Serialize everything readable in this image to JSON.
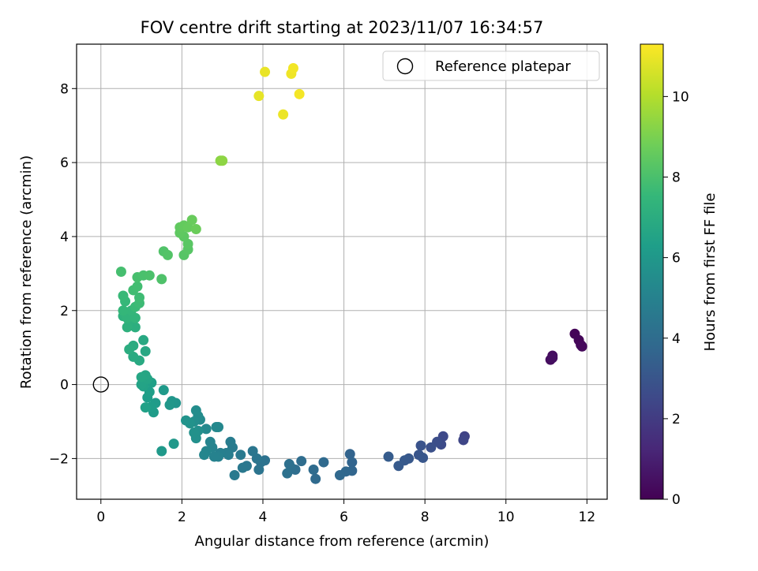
{
  "chart_data": {
    "type": "scatter",
    "title": "FOV centre drift starting at 2023/11/07 16:34:57",
    "xlabel": "Angular distance from reference (arcmin)",
    "ylabel": "Rotation from reference (arcmin)",
    "xlim": [
      -0.6,
      12.5
    ],
    "ylim": [
      -3.1,
      9.2
    ],
    "x_ticks": [
      0,
      2,
      4,
      6,
      8,
      10,
      12
    ],
    "y_ticks": [
      -2,
      0,
      2,
      4,
      6,
      8
    ],
    "x_tick_labels": [
      "0",
      "2",
      "4",
      "6",
      "8",
      "10",
      "12"
    ],
    "y_tick_labels": [
      "−2",
      "0",
      "2",
      "4",
      "6",
      "8"
    ],
    "grid": true,
    "legend": {
      "position": "top-right",
      "entries": [
        {
          "label": "Reference platepar",
          "marker": "open-circle"
        }
      ]
    },
    "reference": {
      "x": 0,
      "y": 0
    },
    "colorbar": {
      "label": "Hours from first FF file",
      "colormap": "viridis",
      "range": [
        0,
        11.3
      ],
      "ticks": [
        0,
        2,
        4,
        6,
        8,
        10
      ],
      "tick_labels": [
        "0",
        "2",
        "4",
        "6",
        "8",
        "10"
      ],
      "stops": [
        "#440154",
        "#482878",
        "#3e4989",
        "#31688e",
        "#26828e",
        "#1f9e89",
        "#35b779",
        "#6ece58",
        "#b5de2b",
        "#fde725"
      ]
    },
    "points": [
      {
        "x": 11.7,
        "y": 1.37,
        "h": 0.1
      },
      {
        "x": 11.8,
        "y": 1.2,
        "h": 0.15
      },
      {
        "x": 11.85,
        "y": 1.07,
        "h": 0.2
      },
      {
        "x": 11.88,
        "y": 1.03,
        "h": 0.25
      },
      {
        "x": 11.15,
        "y": 0.78,
        "h": 0.35
      },
      {
        "x": 11.1,
        "y": 0.67,
        "h": 0.4
      },
      {
        "x": 11.15,
        "y": 0.72,
        "h": 0.45
      },
      {
        "x": 8.98,
        "y": -1.4,
        "h": 2.3
      },
      {
        "x": 8.95,
        "y": -1.5,
        "h": 2.4
      },
      {
        "x": 8.45,
        "y": -1.4,
        "h": 2.5
      },
      {
        "x": 8.4,
        "y": -1.62,
        "h": 2.6
      },
      {
        "x": 8.3,
        "y": -1.55,
        "h": 2.7
      },
      {
        "x": 8.15,
        "y": -1.7,
        "h": 2.8
      },
      {
        "x": 7.9,
        "y": -1.65,
        "h": 2.9
      },
      {
        "x": 7.85,
        "y": -1.9,
        "h": 3.0
      },
      {
        "x": 7.95,
        "y": -1.98,
        "h": 3.05
      },
      {
        "x": 7.6,
        "y": -2.0,
        "h": 3.1
      },
      {
        "x": 7.5,
        "y": -2.05,
        "h": 3.15
      },
      {
        "x": 7.35,
        "y": -2.2,
        "h": 3.2
      },
      {
        "x": 7.1,
        "y": -1.95,
        "h": 3.3
      },
      {
        "x": 6.15,
        "y": -1.88,
        "h": 3.6
      },
      {
        "x": 6.2,
        "y": -2.1,
        "h": 3.65
      },
      {
        "x": 6.2,
        "y": -2.33,
        "h": 3.7
      },
      {
        "x": 6.05,
        "y": -2.35,
        "h": 3.75
      },
      {
        "x": 5.9,
        "y": -2.45,
        "h": 3.8
      },
      {
        "x": 5.5,
        "y": -2.1,
        "h": 3.85
      },
      {
        "x": 5.3,
        "y": -2.55,
        "h": 3.9
      },
      {
        "x": 5.25,
        "y": -2.3,
        "h": 3.95
      },
      {
        "x": 4.95,
        "y": -2.07,
        "h": 4.0
      },
      {
        "x": 4.8,
        "y": -2.3,
        "h": 4.05
      },
      {
        "x": 4.7,
        "y": -2.25,
        "h": 4.1
      },
      {
        "x": 4.65,
        "y": -2.15,
        "h": 4.15
      },
      {
        "x": 4.6,
        "y": -2.4,
        "h": 4.2
      },
      {
        "x": 4.05,
        "y": -2.05,
        "h": 4.25
      },
      {
        "x": 3.95,
        "y": -2.1,
        "h": 4.3
      },
      {
        "x": 3.9,
        "y": -2.3,
        "h": 4.35
      },
      {
        "x": 3.85,
        "y": -2.0,
        "h": 4.4
      },
      {
        "x": 3.75,
        "y": -1.8,
        "h": 4.45
      },
      {
        "x": 3.6,
        "y": -2.2,
        "h": 4.5
      },
      {
        "x": 3.5,
        "y": -2.25,
        "h": 4.55
      },
      {
        "x": 3.45,
        "y": -1.9,
        "h": 4.6
      },
      {
        "x": 3.3,
        "y": -2.45,
        "h": 4.65
      },
      {
        "x": 3.25,
        "y": -1.7,
        "h": 4.7
      },
      {
        "x": 3.2,
        "y": -1.55,
        "h": 4.75
      },
      {
        "x": 3.15,
        "y": -1.9,
        "h": 4.8
      },
      {
        "x": 3.1,
        "y": -1.85,
        "h": 4.85
      },
      {
        "x": 2.95,
        "y": -1.85,
        "h": 4.9
      },
      {
        "x": 2.9,
        "y": -1.95,
        "h": 4.95
      },
      {
        "x": 2.8,
        "y": -1.95,
        "h": 5.0
      },
      {
        "x": 2.75,
        "y": -1.7,
        "h": 5.05
      },
      {
        "x": 2.7,
        "y": -1.55,
        "h": 5.1
      },
      {
        "x": 2.6,
        "y": -1.8,
        "h": 5.15
      },
      {
        "x": 2.55,
        "y": -1.9,
        "h": 5.2
      },
      {
        "x": 2.9,
        "y": -1.15,
        "h": 5.25
      },
      {
        "x": 2.85,
        "y": -1.15,
        "h": 5.3
      },
      {
        "x": 2.6,
        "y": -1.2,
        "h": 5.35
      },
      {
        "x": 2.45,
        "y": -0.95,
        "h": 5.4
      },
      {
        "x": 2.4,
        "y": -0.85,
        "h": 5.45
      },
      {
        "x": 2.35,
        "y": -0.7,
        "h": 5.5
      },
      {
        "x": 2.3,
        "y": -1.0,
        "h": 5.55
      },
      {
        "x": 2.4,
        "y": -1.25,
        "h": 5.6
      },
      {
        "x": 2.35,
        "y": -1.45,
        "h": 5.65
      },
      {
        "x": 2.3,
        "y": -1.3,
        "h": 5.7
      },
      {
        "x": 2.2,
        "y": -1.05,
        "h": 5.75
      },
      {
        "x": 2.1,
        "y": -0.97,
        "h": 5.8
      },
      {
        "x": 1.85,
        "y": -0.5,
        "h": 5.85
      },
      {
        "x": 1.75,
        "y": -0.45,
        "h": 5.9
      },
      {
        "x": 1.7,
        "y": -0.55,
        "h": 5.95
      },
      {
        "x": 1.8,
        "y": -1.6,
        "h": 6.0
      },
      {
        "x": 1.5,
        "y": -1.8,
        "h": 6.05
      },
      {
        "x": 1.55,
        "y": -0.15,
        "h": 6.1
      },
      {
        "x": 1.35,
        "y": -0.5,
        "h": 6.15
      },
      {
        "x": 1.3,
        "y": -0.75,
        "h": 6.2
      },
      {
        "x": 1.25,
        "y": -0.6,
        "h": 6.25
      },
      {
        "x": 1.15,
        "y": -0.35,
        "h": 6.3
      },
      {
        "x": 1.2,
        "y": -0.2,
        "h": 6.35
      },
      {
        "x": 1.25,
        "y": 0.05,
        "h": 6.4
      },
      {
        "x": 1.1,
        "y": -0.62,
        "h": 6.45
      },
      {
        "x": 1.05,
        "y": -0.05,
        "h": 6.5
      },
      {
        "x": 1.0,
        "y": 0.0,
        "h": 6.55
      },
      {
        "x": 1.15,
        "y": 0.15,
        "h": 6.6
      },
      {
        "x": 1.1,
        "y": 0.25,
        "h": 6.65
      },
      {
        "x": 1.0,
        "y": 0.2,
        "h": 6.7
      },
      {
        "x": 1.1,
        "y": 0.9,
        "h": 6.75
      },
      {
        "x": 1.05,
        "y": 1.2,
        "h": 6.8
      },
      {
        "x": 0.95,
        "y": 0.65,
        "h": 6.85
      },
      {
        "x": 0.8,
        "y": 0.75,
        "h": 6.9
      },
      {
        "x": 0.8,
        "y": 1.05,
        "h": 6.95
      },
      {
        "x": 0.7,
        "y": 0.95,
        "h": 7.0
      },
      {
        "x": 0.75,
        "y": 1.6,
        "h": 7.05
      },
      {
        "x": 0.85,
        "y": 1.55,
        "h": 7.1
      },
      {
        "x": 0.7,
        "y": 1.7,
        "h": 7.15
      },
      {
        "x": 0.65,
        "y": 1.55,
        "h": 7.2
      },
      {
        "x": 0.55,
        "y": 1.85,
        "h": 7.25
      },
      {
        "x": 0.6,
        "y": 1.9,
        "h": 7.3
      },
      {
        "x": 0.65,
        "y": 1.8,
        "h": 7.35
      },
      {
        "x": 0.85,
        "y": 1.8,
        "h": 7.4
      },
      {
        "x": 0.75,
        "y": 2.0,
        "h": 7.45
      },
      {
        "x": 0.55,
        "y": 2.0,
        "h": 7.5
      },
      {
        "x": 0.6,
        "y": 2.25,
        "h": 7.55
      },
      {
        "x": 0.55,
        "y": 2.4,
        "h": 7.6
      },
      {
        "x": 0.85,
        "y": 2.1,
        "h": 7.65
      },
      {
        "x": 0.95,
        "y": 2.2,
        "h": 7.7
      },
      {
        "x": 0.95,
        "y": 2.35,
        "h": 7.75
      },
      {
        "x": 0.8,
        "y": 2.55,
        "h": 7.8
      },
      {
        "x": 0.9,
        "y": 2.65,
        "h": 7.85
      },
      {
        "x": 0.5,
        "y": 3.05,
        "h": 7.9
      },
      {
        "x": 0.9,
        "y": 2.9,
        "h": 7.95
      },
      {
        "x": 1.05,
        "y": 2.95,
        "h": 8.0
      },
      {
        "x": 1.2,
        "y": 2.95,
        "h": 8.05
      },
      {
        "x": 1.5,
        "y": 2.85,
        "h": 8.1
      },
      {
        "x": 1.55,
        "y": 3.6,
        "h": 8.15
      },
      {
        "x": 1.65,
        "y": 3.5,
        "h": 8.2
      },
      {
        "x": 2.05,
        "y": 3.5,
        "h": 8.25
      },
      {
        "x": 2.15,
        "y": 3.65,
        "h": 8.3
      },
      {
        "x": 2.15,
        "y": 3.8,
        "h": 8.35
      },
      {
        "x": 2.05,
        "y": 4.0,
        "h": 8.4
      },
      {
        "x": 1.95,
        "y": 4.1,
        "h": 8.45
      },
      {
        "x": 1.95,
        "y": 4.25,
        "h": 8.5
      },
      {
        "x": 2.05,
        "y": 4.3,
        "h": 8.55
      },
      {
        "x": 2.15,
        "y": 4.25,
        "h": 8.6
      },
      {
        "x": 2.25,
        "y": 4.45,
        "h": 8.65
      },
      {
        "x": 2.35,
        "y": 4.2,
        "h": 8.7
      },
      {
        "x": 2.95,
        "y": 6.05,
        "h": 9.3
      },
      {
        "x": 3.0,
        "y": 6.05,
        "h": 9.35
      },
      {
        "x": 3.9,
        "y": 7.8,
        "h": 10.9
      },
      {
        "x": 4.05,
        "y": 8.45,
        "h": 10.95
      },
      {
        "x": 4.5,
        "y": 7.3,
        "h": 11.0
      },
      {
        "x": 4.7,
        "y": 8.4,
        "h": 11.05
      },
      {
        "x": 4.75,
        "y": 8.55,
        "h": 11.1
      },
      {
        "x": 4.9,
        "y": 7.85,
        "h": 11.15
      }
    ]
  }
}
